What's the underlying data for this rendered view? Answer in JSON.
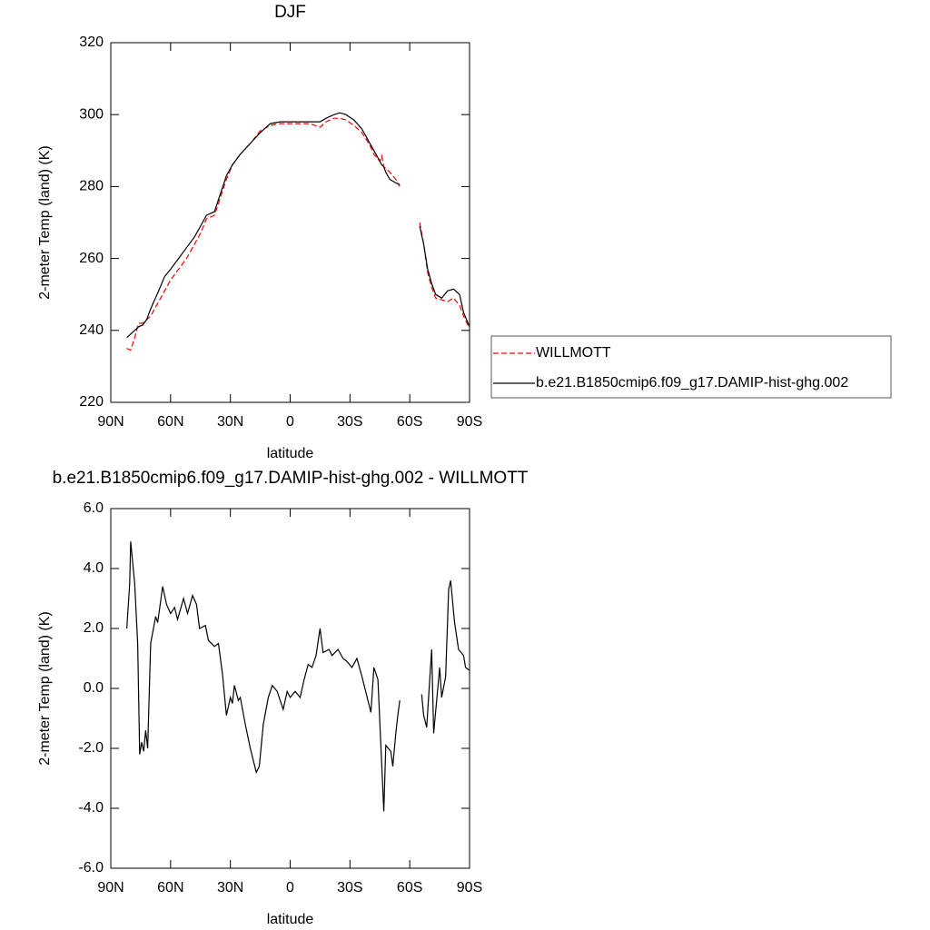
{
  "chart_data": [
    {
      "type": "line",
      "title": "DJF",
      "xlabel": "latitude",
      "ylabel": "2-meter Temp (land) (K)",
      "xlim": [
        90,
        -90
      ],
      "xticks": [
        {
          "value": 90,
          "label": "90N"
        },
        {
          "value": 60,
          "label": "60N"
        },
        {
          "value": 30,
          "label": "30N"
        },
        0,
        {
          "value": -30,
          "label": "30S"
        },
        {
          "value": -60,
          "label": "60S"
        },
        {
          "value": -90,
          "label": "90S"
        }
      ],
      "ylim": [
        220,
        320
      ],
      "yticks": [
        220,
        240,
        260,
        280,
        300,
        320
      ],
      "x": [
        82,
        80,
        78,
        76,
        74,
        72,
        70,
        66,
        63,
        60,
        56,
        52,
        48,
        45,
        42,
        38,
        35,
        32,
        29,
        25,
        20,
        15,
        10,
        5,
        0,
        -5,
        -10,
        -15,
        -18,
        -22,
        -25,
        -28,
        -32,
        -36,
        -40,
        -42,
        -45,
        -46,
        -47,
        -48,
        -50,
        -53,
        -55,
        -60,
        -65,
        -67,
        -69,
        -71,
        -73,
        -76,
        -79,
        -82,
        -85,
        -87,
        -90
      ],
      "legend": "right",
      "series": [
        {
          "name": "WILLMOTT",
          "color": "#ff0000",
          "dash": "dashed",
          "values": [
            235,
            234.5,
            238,
            242,
            242,
            243,
            244,
            248,
            251,
            254,
            257,
            260,
            264,
            267,
            271,
            272,
            277,
            282,
            286,
            289,
            292,
            295.5,
            297,
            297.5,
            297.5,
            297.5,
            297.5,
            296.5,
            298,
            299,
            299,
            298.5,
            297,
            295,
            291.5,
            289,
            287,
            288.5,
            285.5,
            285,
            284,
            282,
            280,
            null,
            270,
            264,
            256,
            252,
            249,
            248.5,
            248,
            249,
            247,
            244,
            240.5
          ]
        },
        {
          "name": "b.e21.B1850cmip6.f09_g17.DAMIP-hist-ghg.002",
          "color": "#000000",
          "dash": "solid",
          "values": [
            238,
            239,
            240,
            241,
            241.5,
            243,
            246,
            251,
            255,
            257,
            260,
            263,
            266,
            269,
            272,
            273,
            278,
            283,
            286,
            289,
            292,
            295,
            297.5,
            298,
            298,
            298,
            298,
            298,
            299,
            300,
            300.5,
            300,
            298.5,
            296,
            292,
            290,
            287,
            286,
            285.5,
            284,
            282,
            281,
            280.5,
            null,
            269,
            264,
            257,
            253,
            250,
            249,
            251,
            251.5,
            250,
            245,
            241
          ]
        }
      ]
    },
    {
      "type": "line",
      "title": "b.e21.B1850cmip6.f09_g17.DAMIP-hist-ghg.002 - WILLMOTT",
      "xlabel": "latitude",
      "ylabel": "2-meter Temp (land) (K)",
      "xlim": [
        90,
        -90
      ],
      "xticks": [
        {
          "value": 90,
          "label": "90N"
        },
        {
          "value": 60,
          "label": "60N"
        },
        {
          "value": 30,
          "label": "30N"
        },
        0,
        {
          "value": -30,
          "label": "30S"
        },
        {
          "value": -60,
          "label": "60S"
        },
        {
          "value": -90,
          "label": "90S"
        }
      ],
      "ylim": [
        -6,
        6
      ],
      "yticks": [
        {
          "value": -6,
          "label": "-6.0"
        },
        {
          "value": -4,
          "label": "-4.0"
        },
        {
          "value": -2,
          "label": "-2.0"
        },
        {
          "value": 0,
          "label": "0.0"
        },
        {
          "value": 2,
          "label": "2.0"
        },
        {
          "value": 4,
          "label": "4.0"
        },
        {
          "value": 6,
          "label": "6.0"
        }
      ],
      "x": [
        82,
        80.5,
        80,
        78,
        76.5,
        75.5,
        74.5,
        73.5,
        72.5,
        71.5,
        70,
        67.5,
        66.5,
        64,
        62,
        60,
        58,
        56.5,
        53.5,
        51.5,
        49,
        47,
        45.5,
        42.5,
        41,
        38,
        36,
        34,
        32,
        30,
        29,
        28,
        26,
        25,
        22.5,
        20,
        18.5,
        17,
        15.5,
        13.5,
        11,
        9,
        6.5,
        3.5,
        1.5,
        0,
        -2.5,
        -5,
        -7,
        -9,
        -11,
        -13,
        -15,
        -16.5,
        -19.5,
        -21,
        -24,
        -26.5,
        -28.5,
        -31,
        -33.5,
        -36,
        -40.5,
        -42,
        -44,
        -47,
        -48,
        -50.5,
        -51.5,
        -53,
        -54,
        -55,
        -60,
        -66,
        -67,
        -68.5,
        -71,
        -72,
        -75,
        -76,
        -78,
        -79.5,
        -80.5,
        -82.5,
        -84.5,
        -87,
        -88,
        -90
      ],
      "series": [
        {
          "color": "#000000",
          "dash": "solid",
          "values": [
            2.0,
            3.5,
            4.9,
            3.5,
            1.5,
            -2.2,
            -1.8,
            -2.1,
            -1.4,
            -2.0,
            1.5,
            2.4,
            2.2,
            3.4,
            2.8,
            2.5,
            2.7,
            2.3,
            3.0,
            2.5,
            3.1,
            2.8,
            2.0,
            2.1,
            1.6,
            1.4,
            1.5,
            0.5,
            -0.9,
            -0.3,
            -0.5,
            0.1,
            -0.4,
            -0.3,
            -1.2,
            -2.0,
            -2.4,
            -2.8,
            -2.6,
            -1.2,
            -0.3,
            0.1,
            -0.1,
            -0.7,
            -0.1,
            -0.3,
            -0.1,
            -0.3,
            0.3,
            0.8,
            0.7,
            1.1,
            2.0,
            1.2,
            1.3,
            1.1,
            1.3,
            1.0,
            0.9,
            0.7,
            1.0,
            0.4,
            -0.8,
            0.7,
            0.3,
            -4.1,
            -1.9,
            -2.1,
            -2.6,
            -1.5,
            -0.9,
            -0.4,
            null,
            -0.2,
            -0.9,
            -1.3,
            1.3,
            -1.5,
            0.7,
            -0.3,
            0.4,
            3.3,
            3.6,
            2.2,
            1.3,
            1.1,
            0.7,
            0.6
          ]
        }
      ]
    }
  ]
}
